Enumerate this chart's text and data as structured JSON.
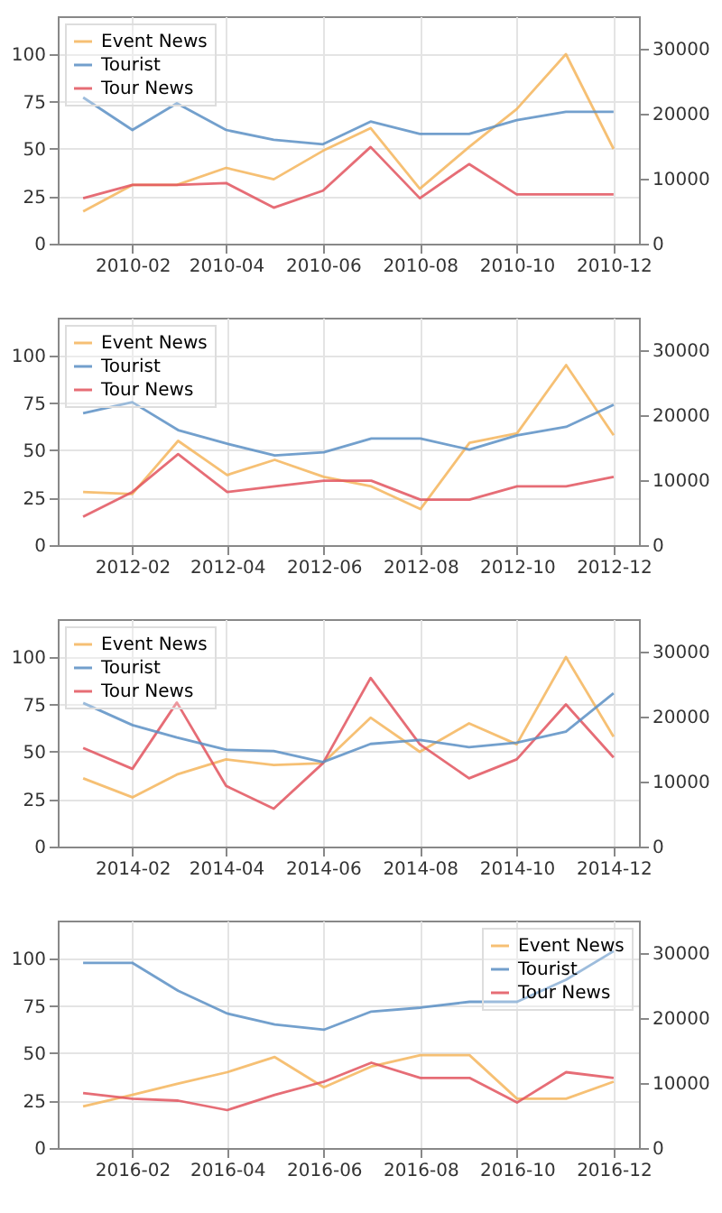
{
  "chart_data": [
    {
      "type": "line",
      "x": [
        "2010-01",
        "2010-02",
        "2010-03",
        "2010-04",
        "2010-05",
        "2010-06",
        "2010-07",
        "2010-08",
        "2010-09",
        "2010-10",
        "2010-11",
        "2010-12"
      ],
      "xlim": [
        "2009-12-16",
        "2010-12-17"
      ],
      "xticks": [
        "2010-02",
        "2010-04",
        "2010-06",
        "2010-08",
        "2010-10",
        "2010-12"
      ],
      "ylim": [
        0,
        120
      ],
      "yticks": [
        0,
        25,
        50,
        75,
        100
      ],
      "y2lim": [
        0,
        35000
      ],
      "y2ticks": [
        0,
        10000,
        20000,
        30000
      ],
      "grid": true,
      "legend": "top left",
      "series": [
        {
          "name": "Event News",
          "color": "#f5b55c",
          "values": [
            17,
            31,
            31,
            40,
            34,
            49,
            61,
            29,
            51,
            71,
            100,
            50
          ]
        },
        {
          "name": "Tourist",
          "color": "#5a8fc4",
          "axis": "y2",
          "values": [
            22500,
            17500,
            21600,
            17500,
            16000,
            15300,
            18800,
            16900,
            16900,
            19000,
            20300,
            20300
          ]
        },
        {
          "name": "Tour News",
          "color": "#e2545e",
          "values": [
            24,
            31,
            31,
            32,
            19,
            28,
            51,
            24,
            42,
            26,
            26,
            26
          ]
        }
      ]
    },
    {
      "type": "line",
      "x": [
        "2012-01",
        "2012-02",
        "2012-03",
        "2012-04",
        "2012-05",
        "2012-06",
        "2012-07",
        "2012-08",
        "2012-09",
        "2012-10",
        "2012-11",
        "2012-12"
      ],
      "xlim": [
        "2011-12-16",
        "2012-12-17"
      ],
      "xticks": [
        "2012-02",
        "2012-04",
        "2012-06",
        "2012-08",
        "2012-10",
        "2012-12"
      ],
      "ylim": [
        0,
        120
      ],
      "yticks": [
        0,
        25,
        50,
        75,
        100
      ],
      "y2lim": [
        0,
        35000
      ],
      "y2ticks": [
        0,
        10000,
        20000,
        30000
      ],
      "grid": true,
      "legend": "top left",
      "series": [
        {
          "name": "Event News",
          "color": "#f5b55c",
          "values": [
            28,
            27,
            55,
            37,
            45,
            36,
            31,
            19,
            54,
            59,
            95,
            58
          ]
        },
        {
          "name": "Tourist",
          "color": "#5a8fc4",
          "axis": "y2",
          "values": [
            20300,
            22000,
            17700,
            15600,
            13800,
            14300,
            16400,
            16400,
            14700,
            16900,
            18200,
            21600
          ]
        },
        {
          "name": "Tour News",
          "color": "#e2545e",
          "values": [
            15,
            28,
            48,
            28,
            31,
            34,
            34,
            24,
            24,
            31,
            31,
            36
          ]
        }
      ]
    },
    {
      "type": "line",
      "x": [
        "2014-01",
        "2014-02",
        "2014-03",
        "2014-04",
        "2014-05",
        "2014-06",
        "2014-07",
        "2014-08",
        "2014-09",
        "2014-10",
        "2014-11",
        "2014-12"
      ],
      "xlim": [
        "2013-12-16",
        "2014-12-17"
      ],
      "xticks": [
        "2014-02",
        "2014-04",
        "2014-06",
        "2014-08",
        "2014-10",
        "2014-12"
      ],
      "ylim": [
        0,
        120
      ],
      "yticks": [
        0,
        25,
        50,
        75,
        100
      ],
      "y2lim": [
        0,
        35000
      ],
      "y2ticks": [
        0,
        10000,
        20000,
        30000
      ],
      "grid": true,
      "legend": "top left",
      "series": [
        {
          "name": "Event News",
          "color": "#f5b55c",
          "values": [
            36,
            26,
            38,
            46,
            43,
            44,
            68,
            50,
            65,
            54,
            100,
            58
          ]
        },
        {
          "name": "Tourist",
          "color": "#5a8fc4",
          "axis": "y2",
          "values": [
            22100,
            18700,
            16800,
            14900,
            14700,
            13000,
            15800,
            16400,
            15300,
            16000,
            17700,
            23600
          ]
        },
        {
          "name": "Tour News",
          "color": "#e2545e",
          "values": [
            52,
            41,
            76,
            32,
            20,
            44,
            89,
            54,
            36,
            46,
            75,
            47
          ]
        }
      ]
    },
    {
      "type": "line",
      "x": [
        "2016-01",
        "2016-02",
        "2016-03",
        "2016-04",
        "2016-05",
        "2016-06",
        "2016-07",
        "2016-08",
        "2016-09",
        "2016-10",
        "2016-11",
        "2016-12"
      ],
      "xlim": [
        "2015-12-16",
        "2016-12-17"
      ],
      "xticks": [
        "2016-02",
        "2016-04",
        "2016-06",
        "2016-08",
        "2016-10",
        "2016-12"
      ],
      "ylim": [
        0,
        120
      ],
      "yticks": [
        0,
        25,
        50,
        75,
        100
      ],
      "y2lim": [
        0,
        35000
      ],
      "y2ticks": [
        0,
        10000,
        20000,
        30000
      ],
      "grid": true,
      "legend": "top right",
      "series": [
        {
          "name": "Event News",
          "color": "#f5b55c",
          "values": [
            22,
            28,
            34,
            40,
            48,
            32,
            43,
            49,
            49,
            26,
            26,
            35
          ]
        },
        {
          "name": "Tourist",
          "color": "#5a8fc4",
          "axis": "y2",
          "values": [
            28500,
            28500,
            24200,
            20700,
            19000,
            18200,
            21000,
            21600,
            22500,
            22500,
            25900,
            30300
          ]
        },
        {
          "name": "Tour News",
          "color": "#e2545e",
          "values": [
            29,
            26,
            25,
            20,
            28,
            35,
            45,
            37,
            37,
            24,
            40,
            37
          ]
        }
      ]
    }
  ]
}
